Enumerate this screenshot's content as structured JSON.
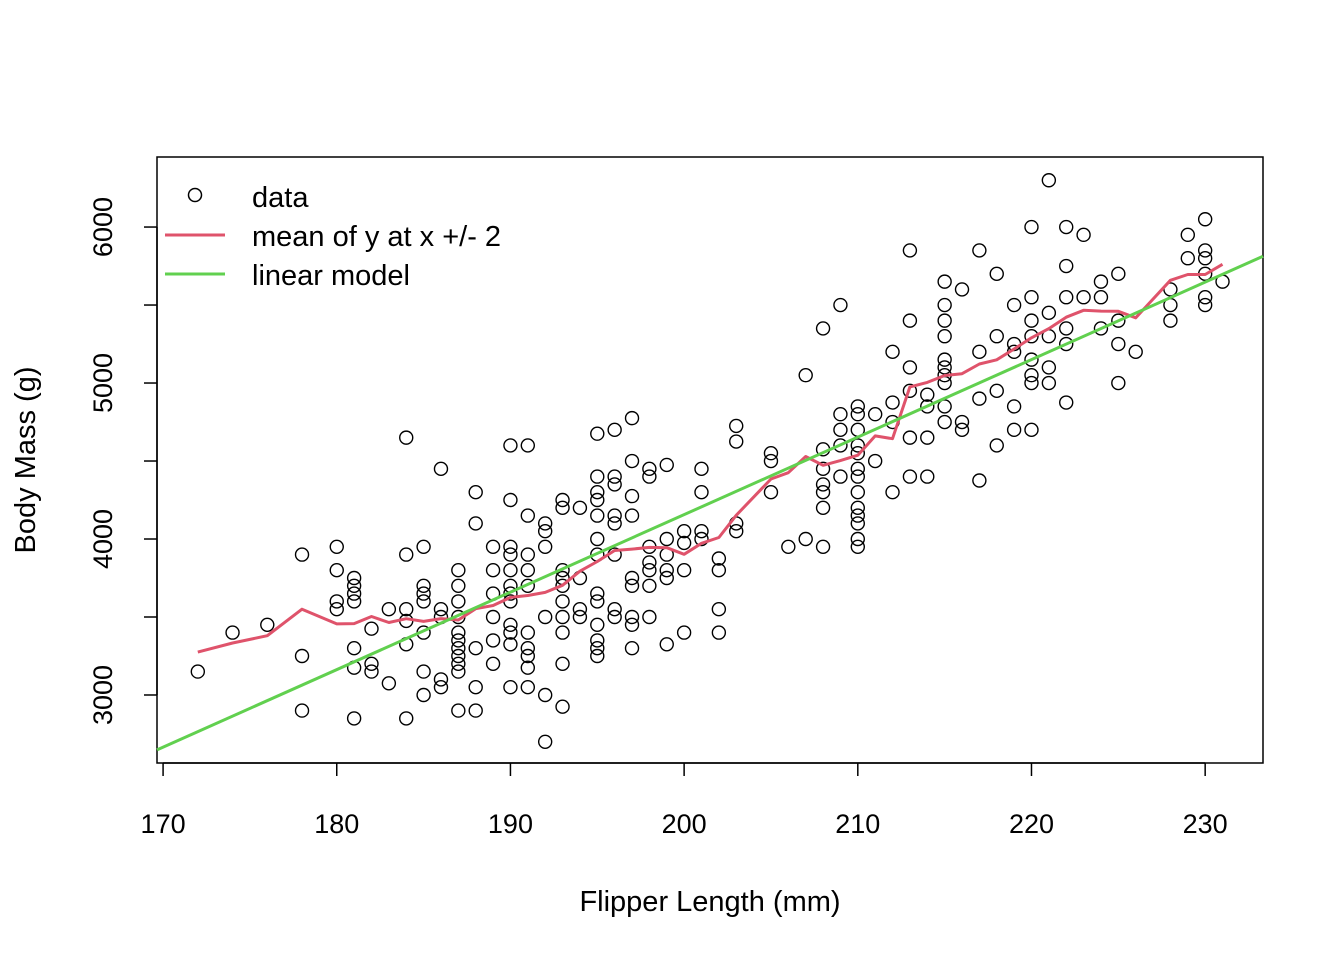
{
  "chart_data": {
    "type": "scatter",
    "title": "",
    "xlabel": "Flipper Length (mm)",
    "ylabel": "Body Mass (g)",
    "xlim": [
      169.65,
      233.33
    ],
    "ylim": [
      2564,
      6449
    ],
    "xticks": [
      170,
      180,
      190,
      200,
      210,
      220,
      230
    ],
    "yticks": [
      3000,
      3500,
      4000,
      4500,
      5000,
      5500,
      6000
    ],
    "ytick_labels": [
      "3000",
      "4000",
      "5000",
      "6000"
    ],
    "grid": false,
    "legend": {
      "placement": "top-left",
      "entries": [
        {
          "label": "data",
          "marker": "o",
          "color": "#000000"
        },
        {
          "label": "mean of y at x +/- 2",
          "color": "#DF536B"
        },
        {
          "label": "linear model",
          "color": "#61D04F"
        }
      ]
    },
    "linear_model": {
      "intercept": -5780.83,
      "slope": 49.686
    },
    "window": 2,
    "points": [
      [
        172,
        3150
      ],
      [
        174,
        3400
      ],
      [
        176,
        3450
      ],
      [
        178,
        3900
      ],
      [
        178,
        3250
      ],
      [
        178,
        2900
      ],
      [
        180,
        3950
      ],
      [
        180,
        3800
      ],
      [
        180,
        3600
      ],
      [
        180,
        3550
      ],
      [
        181,
        3750
      ],
      [
        181,
        3700
      ],
      [
        181,
        3650
      ],
      [
        181,
        3600
      ],
      [
        181,
        3300
      ],
      [
        181,
        3175
      ],
      [
        181,
        2850
      ],
      [
        182,
        3425
      ],
      [
        182,
        3200
      ],
      [
        182,
        3150
      ],
      [
        183,
        3550
      ],
      [
        183,
        3075
      ],
      [
        184,
        4650
      ],
      [
        184,
        3900
      ],
      [
        184,
        3550
      ],
      [
        184,
        3475
      ],
      [
        184,
        3325
      ],
      [
        184,
        2850
      ],
      [
        185,
        3950
      ],
      [
        185,
        3700
      ],
      [
        185,
        3650
      ],
      [
        185,
        3600
      ],
      [
        185,
        3400
      ],
      [
        185,
        3150
      ],
      [
        185,
        3000
      ],
      [
        186,
        4450
      ],
      [
        186,
        3550
      ],
      [
        186,
        3500
      ],
      [
        186,
        3100
      ],
      [
        186,
        3050
      ],
      [
        187,
        3800
      ],
      [
        187,
        3700
      ],
      [
        187,
        3600
      ],
      [
        187,
        3500
      ],
      [
        187,
        3400
      ],
      [
        187,
        3350
      ],
      [
        187,
        3300
      ],
      [
        187,
        3250
      ],
      [
        187,
        3200
      ],
      [
        187,
        3150
      ],
      [
        187,
        2900
      ],
      [
        188,
        4300
      ],
      [
        188,
        4100
      ],
      [
        188,
        3300
      ],
      [
        188,
        3050
      ],
      [
        188,
        2900
      ],
      [
        189,
        3950
      ],
      [
        189,
        3800
      ],
      [
        189,
        3650
      ],
      [
        189,
        3500
      ],
      [
        189,
        3350
      ],
      [
        189,
        3200
      ],
      [
        190,
        4600
      ],
      [
        190,
        4250
      ],
      [
        190,
        3950
      ],
      [
        190,
        3900
      ],
      [
        190,
        3800
      ],
      [
        190,
        3700
      ],
      [
        190,
        3650
      ],
      [
        190,
        3600
      ],
      [
        190,
        3450
      ],
      [
        190,
        3400
      ],
      [
        190,
        3325
      ],
      [
        190,
        3050
      ],
      [
        191,
        4600
      ],
      [
        191,
        4150
      ],
      [
        191,
        3900
      ],
      [
        191,
        3800
      ],
      [
        191,
        3700
      ],
      [
        191,
        3400
      ],
      [
        191,
        3300
      ],
      [
        191,
        3250
      ],
      [
        191,
        3175
      ],
      [
        191,
        3050
      ],
      [
        192,
        4100
      ],
      [
        192,
        4050
      ],
      [
        192,
        3950
      ],
      [
        192,
        3500
      ],
      [
        192,
        3000
      ],
      [
        192,
        2700
      ],
      [
        193,
        4250
      ],
      [
        193,
        4200
      ],
      [
        193,
        3800
      ],
      [
        193,
        3750
      ],
      [
        193,
        3700
      ],
      [
        193,
        3600
      ],
      [
        193,
        3500
      ],
      [
        193,
        3400
      ],
      [
        193,
        3200
      ],
      [
        193,
        2925
      ],
      [
        194,
        4200
      ],
      [
        194,
        3750
      ],
      [
        194,
        3550
      ],
      [
        194,
        3500
      ],
      [
        195,
        4675
      ],
      [
        195,
        4400
      ],
      [
        195,
        4300
      ],
      [
        195,
        4250
      ],
      [
        195,
        4150
      ],
      [
        195,
        4000
      ],
      [
        195,
        3900
      ],
      [
        195,
        3650
      ],
      [
        195,
        3600
      ],
      [
        195,
        3450
      ],
      [
        195,
        3350
      ],
      [
        195,
        3300
      ],
      [
        195,
        3250
      ],
      [
        196,
        4700
      ],
      [
        196,
        4400
      ],
      [
        196,
        4350
      ],
      [
        196,
        4150
      ],
      [
        196,
        4100
      ],
      [
        196,
        3900
      ],
      [
        196,
        3550
      ],
      [
        196,
        3500
      ],
      [
        197,
        4775
      ],
      [
        197,
        4500
      ],
      [
        197,
        4275
      ],
      [
        197,
        4150
      ],
      [
        197,
        3750
      ],
      [
        197,
        3700
      ],
      [
        197,
        3500
      ],
      [
        197,
        3450
      ],
      [
        197,
        3300
      ],
      [
        198,
        4450
      ],
      [
        198,
        4400
      ],
      [
        198,
        3950
      ],
      [
        198,
        3850
      ],
      [
        198,
        3800
      ],
      [
        198,
        3700
      ],
      [
        198,
        3500
      ],
      [
        199,
        4475
      ],
      [
        199,
        4000
      ],
      [
        199,
        3900
      ],
      [
        199,
        3800
      ],
      [
        199,
        3750
      ],
      [
        199,
        3325
      ],
      [
        200,
        4050
      ],
      [
        200,
        3975
      ],
      [
        200,
        3800
      ],
      [
        200,
        3400
      ],
      [
        201,
        4450
      ],
      [
        201,
        4300
      ],
      [
        201,
        4050
      ],
      [
        201,
        4000
      ],
      [
        202,
        3875
      ],
      [
        202,
        3800
      ],
      [
        202,
        3550
      ],
      [
        202,
        3400
      ],
      [
        203,
        4725
      ],
      [
        203,
        4625
      ],
      [
        203,
        4100
      ],
      [
        203,
        4050
      ],
      [
        205,
        4550
      ],
      [
        205,
        4500
      ],
      [
        205,
        4300
      ],
      [
        206,
        3950
      ],
      [
        207,
        5050
      ],
      [
        207,
        4000
      ],
      [
        208,
        5350
      ],
      [
        208,
        4575
      ],
      [
        208,
        4450
      ],
      [
        208,
        4350
      ],
      [
        208,
        4300
      ],
      [
        208,
        4200
      ],
      [
        208,
        3950
      ],
      [
        209,
        5500
      ],
      [
        209,
        4800
      ],
      [
        209,
        4700
      ],
      [
        209,
        4600
      ],
      [
        209,
        4400
      ],
      [
        210,
        4850
      ],
      [
        210,
        4800
      ],
      [
        210,
        4700
      ],
      [
        210,
        4600
      ],
      [
        210,
        4550
      ],
      [
        210,
        4450
      ],
      [
        210,
        4400
      ],
      [
        210,
        4300
      ],
      [
        210,
        4200
      ],
      [
        210,
        4150
      ],
      [
        210,
        4100
      ],
      [
        210,
        4000
      ],
      [
        210,
        3950
      ],
      [
        211,
        4800
      ],
      [
        211,
        4500
      ],
      [
        212,
        5200
      ],
      [
        212,
        4875
      ],
      [
        212,
        4750
      ],
      [
        212,
        4300
      ],
      [
        213,
        5850
      ],
      [
        213,
        5400
      ],
      [
        213,
        5100
      ],
      [
        213,
        4950
      ],
      [
        213,
        4650
      ],
      [
        213,
        4400
      ],
      [
        214,
        4925
      ],
      [
        214,
        4850
      ],
      [
        214,
        4650
      ],
      [
        214,
        4400
      ],
      [
        215,
        5650
      ],
      [
        215,
        5500
      ],
      [
        215,
        5400
      ],
      [
        215,
        5300
      ],
      [
        215,
        5150
      ],
      [
        215,
        5100
      ],
      [
        215,
        5050
      ],
      [
        215,
        5000
      ],
      [
        215,
        4850
      ],
      [
        215,
        4750
      ],
      [
        216,
        5600
      ],
      [
        216,
        4750
      ],
      [
        216,
        4700
      ],
      [
        217,
        5850
      ],
      [
        217,
        5200
      ],
      [
        217,
        4900
      ],
      [
        217,
        4375
      ],
      [
        218,
        5700
      ],
      [
        218,
        5300
      ],
      [
        218,
        4950
      ],
      [
        218,
        4600
      ],
      [
        219,
        5500
      ],
      [
        219,
        5250
      ],
      [
        219,
        5200
      ],
      [
        219,
        4850
      ],
      [
        219,
        4700
      ],
      [
        220,
        6000
      ],
      [
        220,
        5550
      ],
      [
        220,
        5400
      ],
      [
        220,
        5300
      ],
      [
        220,
        5150
      ],
      [
        220,
        5050
      ],
      [
        220,
        5000
      ],
      [
        220,
        4700
      ],
      [
        221,
        6300
      ],
      [
        221,
        5450
      ],
      [
        221,
        5300
      ],
      [
        221,
        5100
      ],
      [
        221,
        5000
      ],
      [
        222,
        6000
      ],
      [
        222,
        5750
      ],
      [
        222,
        5550
      ],
      [
        222,
        5350
      ],
      [
        222,
        5250
      ],
      [
        222,
        4875
      ],
      [
        223,
        5950
      ],
      [
        223,
        5550
      ],
      [
        224,
        5650
      ],
      [
        224,
        5550
      ],
      [
        224,
        5350
      ],
      [
        225,
        5700
      ],
      [
        225,
        5400
      ],
      [
        225,
        5250
      ],
      [
        225,
        5000
      ],
      [
        226,
        5200
      ],
      [
        228,
        5600
      ],
      [
        228,
        5500
      ],
      [
        228,
        5400
      ],
      [
        229,
        5950
      ],
      [
        229,
        5800
      ],
      [
        230,
        6050
      ],
      [
        230,
        5850
      ],
      [
        230,
        5800
      ],
      [
        230,
        5700
      ],
      [
        230,
        5550
      ],
      [
        230,
        5500
      ],
      [
        231,
        5650
      ]
    ]
  }
}
